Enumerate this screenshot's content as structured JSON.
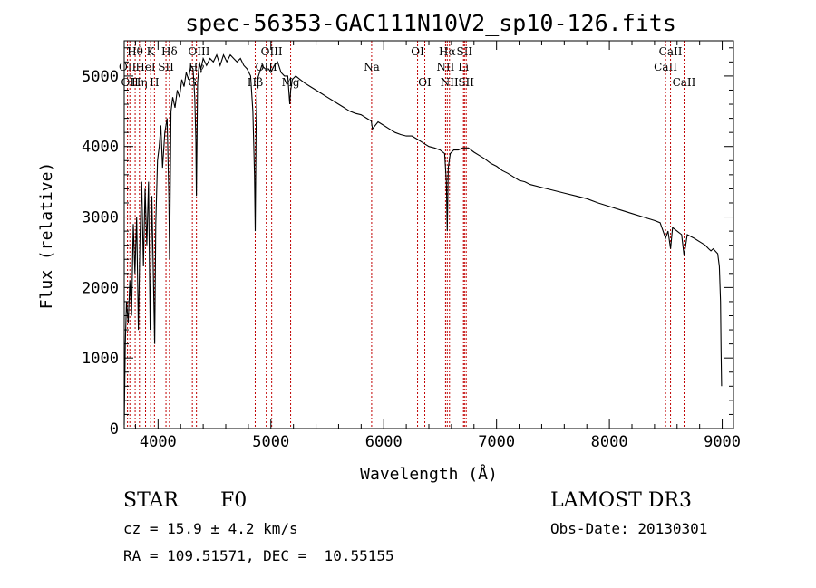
{
  "chart_data": {
    "type": "line",
    "title": "spec-56353-GAC111N10V2_sp10-126.fits",
    "xlabel": "Wavelength (Å)",
    "ylabel": "Flux (relative)",
    "xlim": [
      3700,
      9100
    ],
    "ylim": [
      0,
      5500
    ],
    "xticks": [
      4000,
      5000,
      6000,
      7000,
      8000,
      9000
    ],
    "xtick_labels": [
      "4000",
      "5000",
      "6000",
      "7000",
      "8000",
      "9000"
    ],
    "yticks": [
      0,
      1000,
      2000,
      3000,
      4000,
      5000
    ],
    "ytick_labels": [
      "0",
      "1000",
      "2000",
      "3000",
      "4000",
      "5000"
    ],
    "line_color": "#000000",
    "marker_color": "#c00000",
    "series": [
      {
        "name": "flux",
        "x": [
          3700,
          3710,
          3720,
          3735,
          3750,
          3765,
          3780,
          3795,
          3810,
          3825,
          3840,
          3855,
          3870,
          3885,
          3900,
          3915,
          3930,
          3945,
          3960,
          3970,
          3980,
          3995,
          4010,
          4025,
          4040,
          4060,
          4080,
          4095,
          4102,
          4115,
          4130,
          4150,
          4170,
          4190,
          4210,
          4230,
          4250,
          4270,
          4290,
          4310,
          4325,
          4335,
          4340,
          4350,
          4365,
          4380,
          4400,
          4430,
          4460,
          4490,
          4520,
          4550,
          4580,
          4610,
          4640,
          4670,
          4700,
          4730,
          4760,
          4790,
          4820,
          4840,
          4855,
          4861,
          4868,
          4880,
          4900,
          4920,
          4950,
          4980,
          5000,
          5030,
          5060,
          5090,
          5120,
          5150,
          5167,
          5175,
          5190,
          5220,
          5260,
          5300,
          5350,
          5400,
          5450,
          5500,
          5550,
          5600,
          5650,
          5700,
          5750,
          5800,
          5850,
          5890,
          5900,
          5950,
          6000,
          6050,
          6100,
          6150,
          6200,
          6250,
          6300,
          6350,
          6400,
          6450,
          6500,
          6540,
          6555,
          6563,
          6572,
          6590,
          6620,
          6660,
          6700,
          6750,
          6800,
          6850,
          6900,
          6950,
          7000,
          7050,
          7100,
          7150,
          7200,
          7250,
          7300,
          7400,
          7500,
          7600,
          7700,
          7800,
          7900,
          8000,
          8100,
          8200,
          8300,
          8400,
          8450,
          8498,
          8520,
          8542,
          8560,
          8600,
          8640,
          8662,
          8690,
          8750,
          8800,
          8850,
          8880,
          8900,
          8920,
          8960,
          8975,
          8985,
          8990,
          8995
        ],
        "y": [
          50,
          1200,
          1800,
          1500,
          2100,
          1600,
          2900,
          2200,
          3000,
          1400,
          2700,
          3500,
          2300,
          3400,
          2600,
          3500,
          1400,
          3300,
          2000,
          1200,
          2900,
          3800,
          4000,
          4300,
          3700,
          4200,
          4400,
          3300,
          2400,
          4500,
          4700,
          4550,
          4800,
          4700,
          4950,
          4850,
          5050,
          4950,
          5150,
          5100,
          4700,
          4100,
          3300,
          4900,
          5200,
          5100,
          5250,
          5150,
          5250,
          5200,
          5300,
          5150,
          5300,
          5200,
          5300,
          5250,
          5200,
          5250,
          5150,
          5100,
          5000,
          4500,
          3600,
          2800,
          4200,
          4950,
          5050,
          5150,
          5100,
          5100,
          5050,
          5150,
          5200,
          5050,
          5000,
          5000,
          4600,
          4800,
          4950,
          5000,
          4950,
          4900,
          4850,
          4800,
          4750,
          4700,
          4650,
          4600,
          4550,
          4500,
          4470,
          4450,
          4400,
          4360,
          4250,
          4350,
          4300,
          4250,
          4200,
          4170,
          4150,
          4150,
          4100,
          4050,
          4000,
          3980,
          3950,
          3900,
          3500,
          2800,
          3700,
          3900,
          3950,
          3950,
          3980,
          3980,
          3920,
          3870,
          3820,
          3760,
          3720,
          3660,
          3620,
          3570,
          3520,
          3500,
          3460,
          3420,
          3380,
          3340,
          3300,
          3260,
          3200,
          3150,
          3100,
          3050,
          3000,
          2950,
          2920,
          2700,
          2800,
          2550,
          2850,
          2800,
          2750,
          2450,
          2750,
          2700,
          2650,
          2600,
          2550,
          2520,
          2550,
          2480,
          2300,
          1800,
          1100,
          600
        ]
      }
    ],
    "lines": [
      {
        "wl": 3729,
        "label": "OII",
        "row": 1,
        "side": "c"
      },
      {
        "wl": 3750,
        "label": "OII",
        "row": 2,
        "side": "c"
      },
      {
        "wl": 3797,
        "label": "Hθ",
        "row": 0,
        "side": "c"
      },
      {
        "wl": 3835,
        "label": "Hη",
        "row": 2,
        "side": "c"
      },
      {
        "wl": 3889,
        "label": "HeI",
        "row": 1,
        "side": "c"
      },
      {
        "wl": 3934,
        "label": "K",
        "row": 0,
        "side": "c"
      },
      {
        "wl": 3968,
        "label": "H",
        "row": 2,
        "side": "c"
      },
      {
        "wl": 4070,
        "label": "SII",
        "row": 1,
        "side": "c"
      },
      {
        "wl": 4101,
        "label": "Hδ",
        "row": 0,
        "side": "c"
      },
      {
        "wl": 4304,
        "label": "G",
        "row": 2,
        "side": "c"
      },
      {
        "wl": 4340,
        "label": "Hγ",
        "row": 1,
        "side": "c"
      },
      {
        "wl": 4363,
        "label": "OIII",
        "row": 0,
        "side": "c"
      },
      {
        "wl": 4861,
        "label": "Hβ",
        "row": 2,
        "side": "c"
      },
      {
        "wl": 4959,
        "label": "OIII",
        "row": 1,
        "side": "c"
      },
      {
        "wl": 5007,
        "label": "OIII",
        "row": 0,
        "side": "c"
      },
      {
        "wl": 5175,
        "label": "Mg",
        "row": 2,
        "side": "c"
      },
      {
        "wl": 5893,
        "label": "Na",
        "row": 1,
        "side": "c"
      },
      {
        "wl": 6300,
        "label": "OI",
        "row": 0,
        "side": "c"
      },
      {
        "wl": 6364,
        "label": "OI",
        "row": 2,
        "side": "c"
      },
      {
        "wl": 6548,
        "label": "NII",
        "row": 1,
        "side": "c"
      },
      {
        "wl": 6563,
        "label": "Hα",
        "row": 0,
        "side": "c"
      },
      {
        "wl": 6583,
        "label": "NII",
        "row": 2,
        "side": "c"
      },
      {
        "wl": 6707,
        "label": "Li",
        "row": 1,
        "side": "c"
      },
      {
        "wl": 6716,
        "label": "SII",
        "row": 0,
        "side": "c"
      },
      {
        "wl": 6731,
        "label": "SII",
        "row": 2,
        "side": "c"
      },
      {
        "wl": 8498,
        "label": "CaII",
        "row": 1,
        "side": "c"
      },
      {
        "wl": 8542,
        "label": "CaII",
        "row": 0,
        "side": "c"
      },
      {
        "wl": 8662,
        "label": "CaII",
        "row": 2,
        "side": "c"
      }
    ]
  },
  "info": {
    "object_class": "STAR",
    "subclass": "F0",
    "survey": "LAMOST DR3",
    "cz": "cz = 15.9 ± 4.2 km/s",
    "obs_date": "Obs-Date: 20130301",
    "coords": "RA = 109.51571, DEC =  10.55155"
  }
}
